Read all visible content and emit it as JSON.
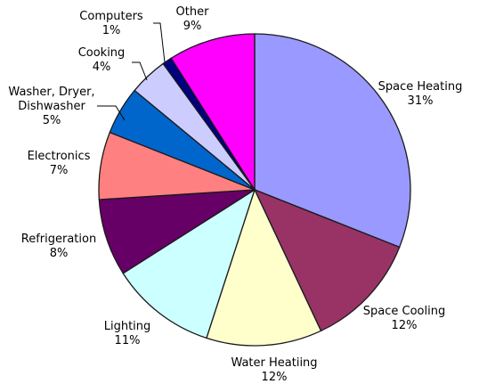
{
  "chart_data": {
    "type": "pie",
    "title": "",
    "legend": "none",
    "slices": [
      {
        "label": "Space Heating",
        "pct_text": "31%",
        "value": 31,
        "color": "#9999ff"
      },
      {
        "label": "Space Cooling",
        "pct_text": "12%",
        "value": 12,
        "color": "#993366"
      },
      {
        "label": "Water Heatiing",
        "pct_text": "12%",
        "value": 12,
        "color": "#ffffcc"
      },
      {
        "label": "Lighting",
        "pct_text": "11%",
        "value": 11,
        "color": "#ccffff"
      },
      {
        "label": "Refrigeration",
        "pct_text": "8%",
        "value": 8,
        "color": "#660066"
      },
      {
        "label": "Electronics",
        "pct_text": "7%",
        "value": 7,
        "color": "#ff8080"
      },
      {
        "label": "Washer, Dryer, Dishwasher",
        "label_lines": [
          "Washer, Dryer,",
          "Dishwasher"
        ],
        "pct_text": "5%",
        "value": 5,
        "color": "#0066cc"
      },
      {
        "label": "Cooking",
        "pct_text": "4%",
        "value": 4,
        "color": "#ccccff"
      },
      {
        "label": "Computers",
        "pct_text": "1%",
        "value": 1,
        "color": "#000080"
      },
      {
        "label": "Other",
        "pct_text": "9%",
        "value": 9,
        "color": "#ff00ff"
      }
    ]
  }
}
